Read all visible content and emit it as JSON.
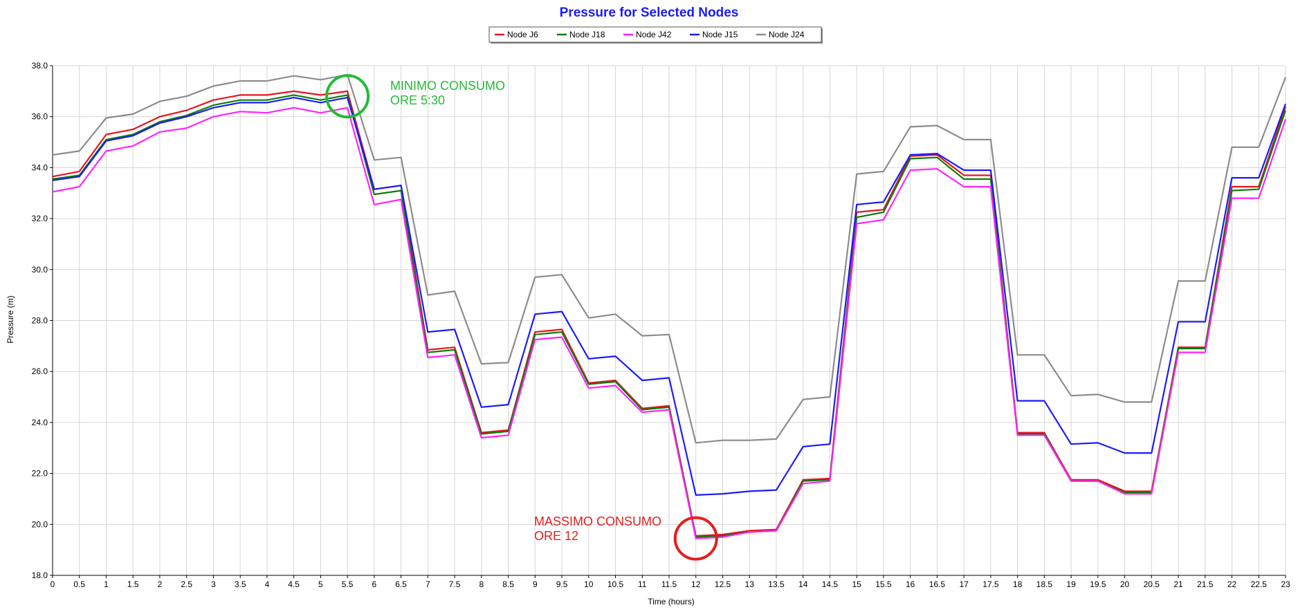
{
  "chart_data": {
    "type": "line",
    "title": "Pressure for Selected Nodes",
    "xlabel": "Time (hours)",
    "ylabel": "Pressure (m)",
    "xlim": [
      0,
      23
    ],
    "ylim": [
      18,
      38
    ],
    "x_ticks": [
      "0",
      "0.5",
      "1",
      "1.5",
      "2",
      "2.5",
      "3",
      "3.5",
      "4",
      "4.5",
      "5",
      "5.5",
      "6",
      "6.5",
      "7",
      "7.5",
      "8",
      "8.5",
      "9",
      "9.5",
      "10",
      "10.5",
      "11",
      "11.5",
      "12",
      "12.5",
      "13",
      "13.5",
      "14",
      "14.5",
      "15",
      "15.5",
      "16",
      "16.5",
      "17",
      "17.5",
      "18",
      "18.5",
      "19",
      "19.5",
      "20",
      "20.5",
      "21",
      "21.5",
      "22",
      "22.5",
      "23"
    ],
    "y_ticks": [
      "18.0",
      "20.0",
      "22.0",
      "24.0",
      "26.0",
      "28.0",
      "30.0",
      "32.0",
      "34.0",
      "36.0",
      "38.0"
    ],
    "grid": true,
    "legend_position": "top-center",
    "x": [
      0,
      0.5,
      1,
      1.5,
      2,
      2.5,
      3,
      3.5,
      4,
      4.5,
      5,
      5.5,
      6,
      6.5,
      7,
      7.5,
      8,
      8.5,
      9,
      9.5,
      10,
      10.5,
      11,
      11.5,
      12,
      12.5,
      13,
      13.5,
      14,
      14.5,
      15,
      15.5,
      16,
      16.5,
      17,
      17.5,
      18,
      18.5,
      19,
      19.5,
      20,
      20.5,
      21,
      21.5,
      22,
      22.5,
      23
    ],
    "series": [
      {
        "name": "Node J6",
        "color": "#e8141c",
        "values": [
          33.65,
          33.85,
          35.3,
          35.5,
          36.0,
          36.25,
          36.65,
          36.85,
          36.85,
          37.0,
          36.85,
          37.0,
          33.15,
          33.3,
          26.85,
          26.95,
          23.6,
          23.7,
          27.55,
          27.65,
          25.55,
          25.65,
          24.55,
          24.65,
          19.55,
          19.6,
          19.75,
          19.8,
          21.75,
          21.8,
          32.25,
          32.35,
          34.45,
          34.5,
          33.7,
          33.7,
          23.6,
          23.6,
          21.75,
          21.75,
          21.3,
          21.3,
          26.95,
          26.95,
          33.25,
          33.25,
          36.4
        ]
      },
      {
        "name": "Node J18",
        "color": "#0a7d0a",
        "values": [
          33.55,
          33.7,
          35.1,
          35.3,
          35.8,
          36.05,
          36.45,
          36.65,
          36.65,
          36.85,
          36.65,
          36.85,
          32.95,
          33.1,
          26.75,
          26.85,
          23.55,
          23.65,
          27.45,
          27.55,
          25.5,
          25.6,
          24.5,
          24.6,
          19.5,
          19.55,
          19.7,
          19.75,
          21.7,
          21.75,
          32.05,
          32.25,
          34.35,
          34.4,
          33.55,
          33.55,
          23.55,
          23.55,
          21.7,
          21.7,
          21.25,
          21.25,
          26.9,
          26.9,
          33.1,
          33.15,
          36.25
        ]
      },
      {
        "name": "Node J42",
        "color": "#ff22ff",
        "values": [
          33.05,
          33.25,
          34.65,
          34.85,
          35.4,
          35.55,
          36.0,
          36.2,
          36.15,
          36.35,
          36.15,
          36.35,
          32.55,
          32.75,
          26.55,
          26.65,
          23.4,
          23.5,
          27.25,
          27.35,
          25.35,
          25.45,
          24.4,
          24.5,
          19.45,
          19.5,
          19.7,
          19.75,
          21.6,
          21.7,
          31.8,
          31.95,
          33.9,
          33.95,
          33.25,
          33.25,
          23.5,
          23.5,
          21.7,
          21.7,
          21.2,
          21.2,
          26.75,
          26.75,
          32.8,
          32.8,
          35.9
        ]
      },
      {
        "name": "Node J15",
        "color": "#1a1aff",
        "values": [
          33.5,
          33.65,
          35.05,
          35.25,
          35.75,
          36.0,
          36.35,
          36.55,
          36.55,
          36.75,
          36.55,
          36.75,
          33.15,
          33.3,
          27.55,
          27.65,
          24.6,
          24.7,
          28.25,
          28.35,
          26.5,
          26.6,
          25.65,
          25.75,
          21.15,
          21.2,
          21.3,
          21.35,
          23.05,
          23.15,
          32.55,
          32.65,
          34.5,
          34.55,
          33.9,
          33.9,
          24.85,
          24.85,
          23.15,
          23.2,
          22.8,
          22.8,
          27.95,
          27.95,
          33.6,
          33.6,
          36.5
        ]
      },
      {
        "name": "Node J24",
        "color": "#8c8c8c",
        "values": [
          34.5,
          34.65,
          35.95,
          36.1,
          36.6,
          36.8,
          37.2,
          37.4,
          37.4,
          37.6,
          37.45,
          37.65,
          34.3,
          34.4,
          29.0,
          29.15,
          26.3,
          26.35,
          29.7,
          29.8,
          28.1,
          28.25,
          27.4,
          27.45,
          23.2,
          23.3,
          23.3,
          23.35,
          24.9,
          25.0,
          33.75,
          33.85,
          35.6,
          35.65,
          35.1,
          35.1,
          26.65,
          26.65,
          25.05,
          25.1,
          24.8,
          24.8,
          29.55,
          29.55,
          34.8,
          34.8,
          37.55
        ]
      }
    ],
    "annotations": [
      {
        "lines": [
          "MINIMO CONSUMO",
          "ORE 5:30"
        ],
        "color": "#22bb33",
        "x": 5.5,
        "y": 36.8
      },
      {
        "lines": [
          "MASSIMO CONSUMO",
          "ORE 12"
        ],
        "color": "#e81c1c",
        "x": 12,
        "y": 19.45
      }
    ]
  }
}
